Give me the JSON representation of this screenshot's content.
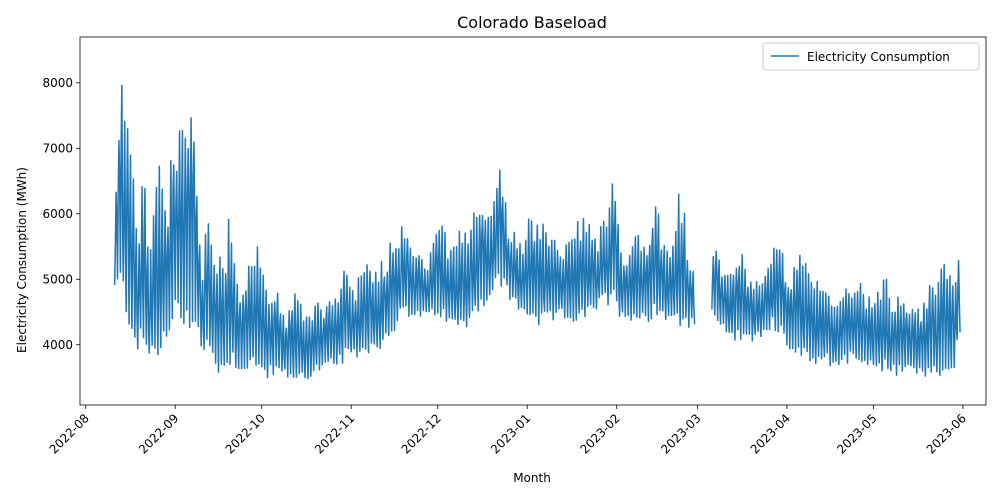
{
  "chart_data": {
    "type": "line",
    "title": "Colorado Baseload",
    "xlabel": "Month",
    "ylabel": "Electricity Consumption (MWh)",
    "xlim": [
      "2022-07-30",
      "2023-06-09"
    ],
    "ylim": [
      3080,
      8700
    ],
    "yticks": [
      4000,
      5000,
      6000,
      7000,
      8000
    ],
    "xticks": [
      "2022-08",
      "2022-09",
      "2022-10",
      "2022-11",
      "2022-12",
      "2023-01",
      "2023-02",
      "2023-03",
      "2023-04",
      "2023-05",
      "2023-06"
    ],
    "legend_position": "top-right",
    "line_color": "#1f77b4",
    "series": [
      {
        "name": "Electricity Consumption",
        "segments": [
          {
            "start": "2022-08-11",
            "end": "2023-02-28",
            "points": [
              [
                "2022-08-11",
                5850
              ],
              [
                "2022-08-13",
                8430
              ],
              [
                "2022-08-15",
                7550
              ],
              [
                "2022-08-17",
                6950
              ],
              [
                "2022-08-19",
                5500
              ],
              [
                "2022-08-21",
                6950
              ],
              [
                "2022-08-23",
                5200
              ],
              [
                "2022-08-25",
                6800
              ],
              [
                "2022-08-27",
                7080
              ],
              [
                "2022-08-29",
                6100
              ],
              [
                "2022-08-31",
                7400
              ],
              [
                "2022-09-02",
                7500
              ],
              [
                "2022-09-04",
                7200
              ],
              [
                "2022-09-06",
                8100
              ],
              [
                "2022-09-08",
                7750
              ],
              [
                "2022-09-10",
                4900
              ],
              [
                "2022-09-12",
                6200
              ],
              [
                "2022-09-14",
                5600
              ],
              [
                "2022-09-16",
                5400
              ],
              [
                "2022-09-18",
                5200
              ],
              [
                "2022-09-20",
                6500
              ],
              [
                "2022-09-22",
                5000
              ],
              [
                "2022-09-24",
                4800
              ],
              [
                "2022-09-26",
                5200
              ],
              [
                "2022-09-28",
                5700
              ],
              [
                "2022-09-30",
                5650
              ],
              [
                "2022-10-02",
                4900
              ],
              [
                "2022-10-04",
                4800
              ],
              [
                "2022-10-06",
                4950
              ],
              [
                "2022-10-08",
                4600
              ],
              [
                "2022-10-10",
                4500
              ],
              [
                "2022-10-12",
                4900
              ],
              [
                "2022-10-14",
                4700
              ],
              [
                "2022-10-16",
                4600
              ],
              [
                "2022-10-18",
                4500
              ],
              [
                "2022-10-20",
                4800
              ],
              [
                "2022-10-22",
                4600
              ],
              [
                "2022-10-24",
                4900
              ],
              [
                "2022-10-26",
                4700
              ],
              [
                "2022-10-28",
                5050
              ],
              [
                "2022-10-30",
                5250
              ],
              [
                "2022-11-01",
                4900
              ],
              [
                "2022-11-03",
                5000
              ],
              [
                "2022-11-05",
                5100
              ],
              [
                "2022-11-07",
                5400
              ],
              [
                "2022-11-09",
                5200
              ],
              [
                "2022-11-11",
                5300
              ],
              [
                "2022-11-13",
                5400
              ],
              [
                "2022-11-15",
                5700
              ],
              [
                "2022-11-17",
                5750
              ],
              [
                "2022-11-19",
                6100
              ],
              [
                "2022-11-21",
                5800
              ],
              [
                "2022-11-23",
                5400
              ],
              [
                "2022-11-25",
                5600
              ],
              [
                "2022-11-27",
                5200
              ],
              [
                "2022-11-29",
                5500
              ],
              [
                "2022-12-01",
                6250
              ],
              [
                "2022-12-03",
                5800
              ],
              [
                "2022-12-05",
                5500
              ],
              [
                "2022-12-07",
                5600
              ],
              [
                "2022-12-09",
                5800
              ],
              [
                "2022-12-11",
                5700
              ],
              [
                "2022-12-13",
                6000
              ],
              [
                "2022-12-15",
                6320
              ],
              [
                "2022-12-17",
                6200
              ],
              [
                "2022-12-19",
                5900
              ],
              [
                "2022-12-21",
                6700
              ],
              [
                "2022-12-22",
                6950
              ],
              [
                "2022-12-24",
                6600
              ],
              [
                "2022-12-26",
                5600
              ],
              [
                "2022-12-28",
                5800
              ],
              [
                "2022-12-30",
                5500
              ],
              [
                "2023-01-01",
                5900
              ],
              [
                "2023-01-03",
                6080
              ],
              [
                "2023-01-05",
                5800
              ],
              [
                "2023-01-07",
                5900
              ],
              [
                "2023-01-09",
                5700
              ],
              [
                "2023-01-11",
                5700
              ],
              [
                "2023-01-13",
                5400
              ],
              [
                "2023-01-15",
                5600
              ],
              [
                "2023-01-17",
                5800
              ],
              [
                "2023-01-19",
                5950
              ],
              [
                "2023-01-21",
                6050
              ],
              [
                "2023-01-23",
                5800
              ],
              [
                "2023-01-25",
                5600
              ],
              [
                "2023-01-27",
                6000
              ],
              [
                "2023-01-29",
                5900
              ],
              [
                "2023-01-31",
                6700
              ],
              [
                "2023-02-02",
                5600
              ],
              [
                "2023-02-04",
                5400
              ],
              [
                "2023-02-06",
                5600
              ],
              [
                "2023-02-08",
                5900
              ],
              [
                "2023-02-10",
                5600
              ],
              [
                "2023-02-12",
                5700
              ],
              [
                "2023-02-14",
                6450
              ],
              [
                "2023-02-16",
                5900
              ],
              [
                "2023-02-18",
                5500
              ],
              [
                "2023-02-20",
                5400
              ],
              [
                "2023-02-22",
                6500
              ],
              [
                "2023-02-24",
                6300
              ],
              [
                "2023-02-26",
                5400
              ],
              [
                "2023-02-28",
                5400
              ]
            ]
          },
          {
            "start": "2023-03-06",
            "end": "2023-05-31",
            "points": [
              [
                "2023-03-06",
                5600
              ],
              [
                "2023-03-08",
                5650
              ],
              [
                "2023-03-10",
                5200
              ],
              [
                "2023-03-12",
                5100
              ],
              [
                "2023-03-14",
                5400
              ],
              [
                "2023-03-16",
                5450
              ],
              [
                "2023-03-18",
                5200
              ],
              [
                "2023-03-20",
                5100
              ],
              [
                "2023-03-22",
                5000
              ],
              [
                "2023-03-24",
                5200
              ],
              [
                "2023-03-26",
                5300
              ],
              [
                "2023-03-28",
                5600
              ],
              [
                "2023-03-30",
                5500
              ],
              [
                "2023-04-01",
                5200
              ],
              [
                "2023-04-03",
                5100
              ],
              [
                "2023-04-05",
                5500
              ],
              [
                "2023-04-07",
                5300
              ],
              [
                "2023-04-09",
                5100
              ],
              [
                "2023-04-11",
                5000
              ],
              [
                "2023-04-13",
                4900
              ],
              [
                "2023-04-15",
                5000
              ],
              [
                "2023-04-17",
                4700
              ],
              [
                "2023-04-19",
                4600
              ],
              [
                "2023-04-21",
                5000
              ],
              [
                "2023-04-23",
                5000
              ],
              [
                "2023-04-25",
                4900
              ],
              [
                "2023-04-27",
                5050
              ],
              [
                "2023-04-29",
                4800
              ],
              [
                "2023-05-01",
                4700
              ],
              [
                "2023-05-03",
                4900
              ],
              [
                "2023-05-05",
                5100
              ],
              [
                "2023-05-07",
                4800
              ],
              [
                "2023-05-09",
                4700
              ],
              [
                "2023-05-11",
                5000
              ],
              [
                "2023-05-13",
                4600
              ],
              [
                "2023-05-15",
                4700
              ],
              [
                "2023-05-17",
                4600
              ],
              [
                "2023-05-19",
                4700
              ],
              [
                "2023-05-21",
                5200
              ],
              [
                "2023-05-23",
                4900
              ],
              [
                "2023-05-25",
                5300
              ],
              [
                "2023-05-27",
                5350
              ],
              [
                "2023-05-29",
                5000
              ],
              [
                "2023-05-31",
                5500
              ]
            ]
          }
        ],
        "lows": [
          [
            "2022-08-11",
            4750
          ],
          [
            "2022-08-18",
            3850
          ],
          [
            "2022-08-26",
            3550
          ],
          [
            "2022-09-02",
            4150
          ],
          [
            "2022-09-09",
            3900
          ],
          [
            "2022-09-16",
            3450
          ],
          [
            "2022-09-23",
            3550
          ],
          [
            "2022-09-30",
            3400
          ],
          [
            "2022-10-07",
            3450
          ],
          [
            "2022-10-14",
            3350
          ],
          [
            "2022-10-21",
            3500
          ],
          [
            "2022-10-28",
            3600
          ],
          [
            "2022-11-04",
            3750
          ],
          [
            "2022-11-11",
            3850
          ],
          [
            "2022-11-18",
            4250
          ],
          [
            "2022-11-25",
            4350
          ],
          [
            "2022-12-02",
            4300
          ],
          [
            "2022-12-09",
            4100
          ],
          [
            "2022-12-16",
            4450
          ],
          [
            "2022-12-23",
            4750
          ],
          [
            "2022-12-30",
            4400
          ],
          [
            "2023-01-06",
            4150
          ],
          [
            "2023-01-13",
            4350
          ],
          [
            "2023-01-20",
            4200
          ],
          [
            "2023-01-27",
            4550
          ],
          [
            "2023-02-03",
            4350
          ],
          [
            "2023-02-10",
            4250
          ],
          [
            "2023-02-17",
            4350
          ],
          [
            "2023-02-24",
            4150
          ],
          [
            "2023-02-28",
            4200
          ],
          [
            "2023-03-06",
            4300
          ],
          [
            "2023-03-13",
            4000
          ],
          [
            "2023-03-20",
            3950
          ],
          [
            "2023-03-27",
            4200
          ],
          [
            "2023-04-03",
            3750
          ],
          [
            "2023-04-10",
            3650
          ],
          [
            "2023-04-17",
            3600
          ],
          [
            "2023-04-24",
            3650
          ],
          [
            "2023-05-01",
            3550
          ],
          [
            "2023-05-08",
            3450
          ],
          [
            "2023-05-15",
            3500
          ],
          [
            "2023-05-22",
            3400
          ],
          [
            "2023-05-29",
            3500
          ],
          [
            "2023-05-31",
            4100
          ]
        ]
      }
    ]
  }
}
